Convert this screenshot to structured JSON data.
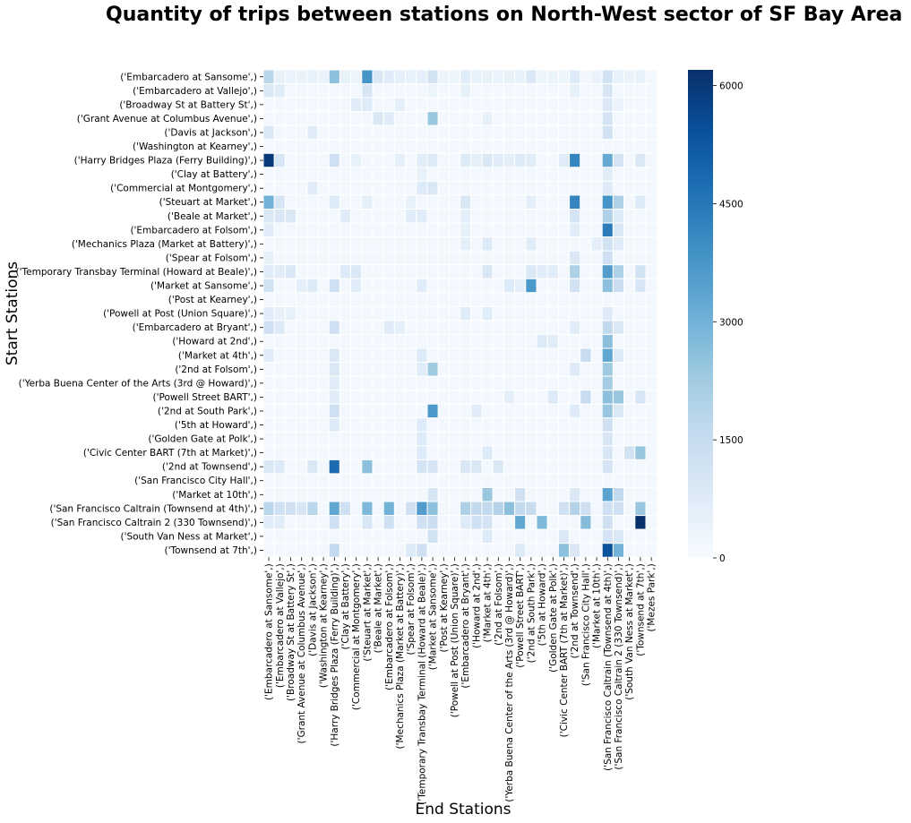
{
  "title": "Quantity of trips between stations on North-West sector of SF Bay Area",
  "chart_data": {
    "type": "heatmap",
    "title": "Quantity of trips between stations on North-West sector of SF Bay Area",
    "xlabel": "End Stations",
    "ylabel": "Start Stations",
    "colormap": "Blues",
    "vmin": 0,
    "vmax": 6200,
    "colorbar_ticks": [
      0,
      1500,
      3000,
      4500,
      6000
    ],
    "colorbar_tick_labels": [
      "0",
      "1500",
      "3000",
      "4500",
      "6000"
    ],
    "row_labels": [
      "('Embarcadero at Sansome',)",
      "('Embarcadero at Vallejo',)",
      "('Broadway St at Battery St',)",
      "('Grant Avenue at Columbus Avenue',)",
      "('Davis at Jackson',)",
      "('Washington at Kearney',)",
      "('Harry Bridges Plaza (Ferry Building)',)",
      "('Clay at Battery',)",
      "('Commercial at Montgomery',)",
      "('Steuart at Market',)",
      "('Beale at Market',)",
      "('Embarcadero at Folsom',)",
      "('Mechanics Plaza (Market at Battery)',)",
      "('Spear at Folsom',)",
      "('Temporary Transbay Terminal (Howard at Beale)',)",
      "('Market at Sansome',)",
      "('Post at Kearney',)",
      "('Powell at Post (Union Square)',)",
      "('Embarcadero at Bryant',)",
      "('Howard at 2nd',)",
      "('Market at 4th',)",
      "('2nd at Folsom',)",
      "('Yerba Buena Center of the Arts (3rd @ Howard)',)",
      "('Powell Street BART',)",
      "('2nd at South Park',)",
      "('5th at Howard',)",
      "('Golden Gate at Polk',)",
      "('Civic Center BART (7th at Market)',)",
      "('2nd at Townsend',)",
      "('San Francisco City Hall',)",
      "('Market at 10th',)",
      "('San Francisco Caltrain (Townsend at 4th)',)",
      "('San Francisco Caltrain 2 (330 Townsend)',)",
      "('South Van Ness at Market',)",
      "('Townsend at 7th',)"
    ],
    "col_labels": [
      "('Embarcadero at Sansome',)",
      "('Embarcadero at Vallejo',)",
      "('Broadway St at Battery St',)",
      "('Grant Avenue at Columbus Avenue',)",
      "('Davis at Jackson',)",
      "('Washington at Kearney',)",
      "('Harry Bridges Plaza (Ferry Building)',)",
      "('Clay at Battery',)",
      "('Commercial at Montgomery',)",
      "('Steuart at Market',)",
      "('Beale at Market',)",
      "('Embarcadero at Folsom',)",
      "('Mechanics Plaza (Market at Battery)',)",
      "('Spear at Folsom',)",
      "('Temporary Transbay Terminal (Howard at Beale)',)",
      "('Market at Sansome',)",
      "('Post at Kearney',)",
      "('Powell at Post (Union Square)',)",
      "('Embarcadero at Bryant',)",
      "('Howard at 2nd',)",
      "('Market at 4th',)",
      "('2nd at Folsom',)",
      "('Yerba Buena Center of the Arts (3rd @ Howard)',)",
      "('Powell Street BART',)",
      "('2nd at South Park',)",
      "('5th at Howard',)",
      "('Golden Gate at Polk',)",
      "('Civic Center BART (7th at Market)',)",
      "('2nd at Townsend',)",
      "('San Francisco City Hall',)",
      "('Market at 10th',)",
      "('San Francisco Caltrain (Townsend at 4th)',)",
      "('San Francisco Caltrain 2 (330 Townsend)',)",
      "('South Van Ness at Market',)",
      "('Townsend at 7th',)",
      "('Mezes Park',)"
    ],
    "background_value": 150,
    "cells": [
      [
        0,
        0,
        1800
      ],
      [
        0,
        1,
        500
      ],
      [
        0,
        2,
        400
      ],
      [
        0,
        3,
        400
      ],
      [
        0,
        4,
        500
      ],
      [
        0,
        5,
        400
      ],
      [
        0,
        6,
        2600
      ],
      [
        0,
        7,
        500
      ],
      [
        0,
        8,
        300
      ],
      [
        0,
        9,
        3800
      ],
      [
        0,
        10,
        900
      ],
      [
        0,
        11,
        700
      ],
      [
        0,
        12,
        600
      ],
      [
        0,
        13,
        500
      ],
      [
        0,
        14,
        600
      ],
      [
        0,
        15,
        1200
      ],
      [
        0,
        16,
        300
      ],
      [
        0,
        17,
        300
      ],
      [
        0,
        18,
        700
      ],
      [
        0,
        19,
        500
      ],
      [
        0,
        20,
        500
      ],
      [
        0,
        21,
        400
      ],
      [
        0,
        22,
        500
      ],
      [
        0,
        23,
        500
      ],
      [
        0,
        24,
        900
      ],
      [
        0,
        25,
        300
      ],
      [
        0,
        26,
        300
      ],
      [
        0,
        27,
        300
      ],
      [
        0,
        28,
        800
      ],
      [
        0,
        29,
        200
      ],
      [
        0,
        30,
        400
      ],
      [
        0,
        31,
        1200
      ],
      [
        0,
        32,
        500
      ],
      [
        0,
        33,
        400
      ],
      [
        0,
        34,
        500
      ],
      [
        1,
        0,
        900
      ],
      [
        1,
        1,
        700
      ],
      [
        1,
        9,
        1000
      ],
      [
        1,
        15,
        300
      ],
      [
        1,
        18,
        500
      ],
      [
        1,
        28,
        500
      ],
      [
        1,
        31,
        1000
      ],
      [
        2,
        8,
        700
      ],
      [
        2,
        9,
        800
      ],
      [
        2,
        12,
        600
      ],
      [
        2,
        31,
        900
      ],
      [
        2,
        32,
        400
      ],
      [
        3,
        15,
        2400
      ],
      [
        3,
        10,
        900
      ],
      [
        3,
        11,
        700
      ],
      [
        3,
        20,
        500
      ],
      [
        3,
        31,
        1100
      ],
      [
        4,
        0,
        900
      ],
      [
        4,
        4,
        700
      ],
      [
        4,
        31,
        1200
      ],
      [
        6,
        0,
        6000
      ],
      [
        6,
        1,
        1000
      ],
      [
        6,
        6,
        1300
      ],
      [
        6,
        8,
        500
      ],
      [
        6,
        12,
        600
      ],
      [
        6,
        14,
        700
      ],
      [
        6,
        15,
        800
      ],
      [
        6,
        18,
        800
      ],
      [
        6,
        19,
        600
      ],
      [
        6,
        20,
        900
      ],
      [
        6,
        21,
        700
      ],
      [
        6,
        22,
        600
      ],
      [
        6,
        23,
        800
      ],
      [
        6,
        24,
        700
      ],
      [
        6,
        27,
        700
      ],
      [
        6,
        28,
        4200
      ],
      [
        6,
        31,
        3200
      ],
      [
        6,
        32,
        1100
      ],
      [
        6,
        34,
        900
      ],
      [
        7,
        31,
        700
      ],
      [
        7,
        14,
        500
      ],
      [
        8,
        4,
        700
      ],
      [
        8,
        14,
        800
      ],
      [
        8,
        15,
        900
      ],
      [
        8,
        31,
        800
      ],
      [
        9,
        0,
        3000
      ],
      [
        9,
        1,
        1000
      ],
      [
        9,
        6,
        800
      ],
      [
        9,
        9,
        600
      ],
      [
        9,
        13,
        500
      ],
      [
        9,
        18,
        900
      ],
      [
        9,
        24,
        600
      ],
      [
        9,
        28,
        4200
      ],
      [
        9,
        31,
        3800
      ],
      [
        9,
        32,
        2000
      ],
      [
        9,
        34,
        800
      ],
      [
        10,
        0,
        900
      ],
      [
        10,
        1,
        900
      ],
      [
        10,
        2,
        900
      ],
      [
        10,
        7,
        700
      ],
      [
        10,
        13,
        700
      ],
      [
        10,
        14,
        700
      ],
      [
        10,
        18,
        600
      ],
      [
        10,
        28,
        1100
      ],
      [
        10,
        31,
        2000
      ],
      [
        10,
        32,
        800
      ],
      [
        11,
        0,
        700
      ],
      [
        11,
        18,
        500
      ],
      [
        11,
        28,
        700
      ],
      [
        11,
        31,
        4400
      ],
      [
        11,
        32,
        900
      ],
      [
        12,
        18,
        600
      ],
      [
        12,
        20,
        800
      ],
      [
        12,
        24,
        700
      ],
      [
        12,
        30,
        600
      ],
      [
        12,
        31,
        1200
      ],
      [
        12,
        32,
        700
      ],
      [
        13,
        0,
        500
      ],
      [
        13,
        28,
        900
      ],
      [
        13,
        31,
        1300
      ],
      [
        14,
        0,
        700
      ],
      [
        14,
        1,
        700
      ],
      [
        14,
        2,
        900
      ],
      [
        14,
        7,
        800
      ],
      [
        14,
        8,
        900
      ],
      [
        14,
        20,
        900
      ],
      [
        14,
        24,
        900
      ],
      [
        14,
        25,
        700
      ],
      [
        14,
        26,
        700
      ],
      [
        14,
        28,
        2000
      ],
      [
        14,
        31,
        3600
      ],
      [
        14,
        32,
        2000
      ],
      [
        14,
        34,
        1200
      ],
      [
        15,
        0,
        1200
      ],
      [
        15,
        3,
        600
      ],
      [
        15,
        4,
        800
      ],
      [
        15,
        6,
        1300
      ],
      [
        15,
        8,
        700
      ],
      [
        15,
        14,
        700
      ],
      [
        15,
        22,
        800
      ],
      [
        15,
        23,
        600
      ],
      [
        15,
        24,
        3700
      ],
      [
        15,
        28,
        1200
      ],
      [
        15,
        31,
        2600
      ],
      [
        15,
        32,
        1400
      ],
      [
        15,
        34,
        1000
      ],
      [
        17,
        0,
        700
      ],
      [
        17,
        1,
        500
      ],
      [
        17,
        2,
        500
      ],
      [
        17,
        18,
        700
      ],
      [
        17,
        20,
        700
      ],
      [
        17,
        31,
        800
      ],
      [
        18,
        0,
        1300
      ],
      [
        18,
        1,
        800
      ],
      [
        18,
        6,
        1300
      ],
      [
        18,
        11,
        700
      ],
      [
        18,
        12,
        600
      ],
      [
        18,
        28,
        700
      ],
      [
        18,
        31,
        1600
      ],
      [
        18,
        32,
        900
      ],
      [
        19,
        31,
        2600
      ],
      [
        19,
        25,
        800
      ],
      [
        19,
        26,
        700
      ],
      [
        20,
        0,
        700
      ],
      [
        20,
        6,
        900
      ],
      [
        20,
        14,
        800
      ],
      [
        20,
        29,
        1500
      ],
      [
        20,
        31,
        3300
      ],
      [
        20,
        32,
        800
      ],
      [
        21,
        6,
        900
      ],
      [
        21,
        14,
        700
      ],
      [
        21,
        15,
        2300
      ],
      [
        21,
        28,
        800
      ],
      [
        21,
        31,
        2300
      ],
      [
        22,
        6,
        700
      ],
      [
        22,
        31,
        2200
      ],
      [
        23,
        6,
        700
      ],
      [
        23,
        22,
        600
      ],
      [
        23,
        26,
        800
      ],
      [
        23,
        29,
        1500
      ],
      [
        23,
        31,
        2600
      ],
      [
        23,
        32,
        2400
      ],
      [
        23,
        34,
        1000
      ],
      [
        24,
        6,
        1300
      ],
      [
        24,
        15,
        3700
      ],
      [
        24,
        19,
        700
      ],
      [
        24,
        28,
        800
      ],
      [
        24,
        31,
        2400
      ],
      [
        24,
        32,
        900
      ],
      [
        25,
        6,
        800
      ],
      [
        25,
        14,
        800
      ],
      [
        25,
        31,
        1300
      ],
      [
        26,
        14,
        800
      ],
      [
        26,
        31,
        1000
      ],
      [
        27,
        14,
        800
      ],
      [
        27,
        20,
        800
      ],
      [
        27,
        31,
        1000
      ],
      [
        27,
        33,
        1200
      ],
      [
        27,
        34,
        2400
      ],
      [
        28,
        0,
        900
      ],
      [
        28,
        1,
        800
      ],
      [
        28,
        4,
        900
      ],
      [
        28,
        6,
        4800
      ],
      [
        28,
        9,
        2600
      ],
      [
        28,
        14,
        1100
      ],
      [
        28,
        15,
        1100
      ],
      [
        28,
        18,
        900
      ],
      [
        28,
        19,
        900
      ],
      [
        28,
        21,
        900
      ],
      [
        28,
        31,
        1100
      ],
      [
        30,
        15,
        1000
      ],
      [
        30,
        20,
        2400
      ],
      [
        30,
        23,
        1300
      ],
      [
        30,
        28,
        900
      ],
      [
        30,
        31,
        3400
      ],
      [
        30,
        32,
        1600
      ],
      [
        31,
        0,
        1800
      ],
      [
        31,
        1,
        1300
      ],
      [
        31,
        2,
        1300
      ],
      [
        31,
        3,
        1000
      ],
      [
        31,
        4,
        1800
      ],
      [
        31,
        6,
        3300
      ],
      [
        31,
        7,
        1300
      ],
      [
        31,
        9,
        2800
      ],
      [
        31,
        11,
        3000
      ],
      [
        31,
        13,
        1300
      ],
      [
        31,
        14,
        3600
      ],
      [
        31,
        15,
        2600
      ],
      [
        31,
        18,
        2000
      ],
      [
        31,
        19,
        1600
      ],
      [
        31,
        20,
        1600
      ],
      [
        31,
        21,
        1900
      ],
      [
        31,
        22,
        2600
      ],
      [
        31,
        23,
        1600
      ],
      [
        31,
        24,
        1500
      ],
      [
        31,
        27,
        1300
      ],
      [
        31,
        28,
        1900
      ],
      [
        31,
        29,
        1300
      ],
      [
        31,
        31,
        1300
      ],
      [
        31,
        32,
        1300
      ],
      [
        31,
        34,
        2400
      ],
      [
        32,
        0,
        700
      ],
      [
        32,
        1,
        700
      ],
      [
        32,
        6,
        1300
      ],
      [
        32,
        9,
        1000
      ],
      [
        32,
        11,
        1300
      ],
      [
        32,
        14,
        1300
      ],
      [
        32,
        15,
        1400
      ],
      [
        32,
        18,
        800
      ],
      [
        32,
        19,
        1300
      ],
      [
        32,
        20,
        1100
      ],
      [
        32,
        23,
        3300
      ],
      [
        32,
        25,
        2800
      ],
      [
        32,
        29,
        2700
      ],
      [
        32,
        31,
        1300
      ],
      [
        32,
        34,
        6200
      ],
      [
        33,
        15,
        1200
      ],
      [
        33,
        20,
        800
      ],
      [
        33,
        27,
        900
      ],
      [
        33,
        31,
        1100
      ],
      [
        33,
        32,
        900
      ],
      [
        34,
        6,
        1600
      ],
      [
        34,
        13,
        800
      ],
      [
        34,
        14,
        1300
      ],
      [
        34,
        23,
        800
      ],
      [
        34,
        27,
        2600
      ],
      [
        34,
        28,
        900
      ],
      [
        34,
        31,
        5400
      ],
      [
        34,
        32,
        3000
      ]
    ]
  }
}
